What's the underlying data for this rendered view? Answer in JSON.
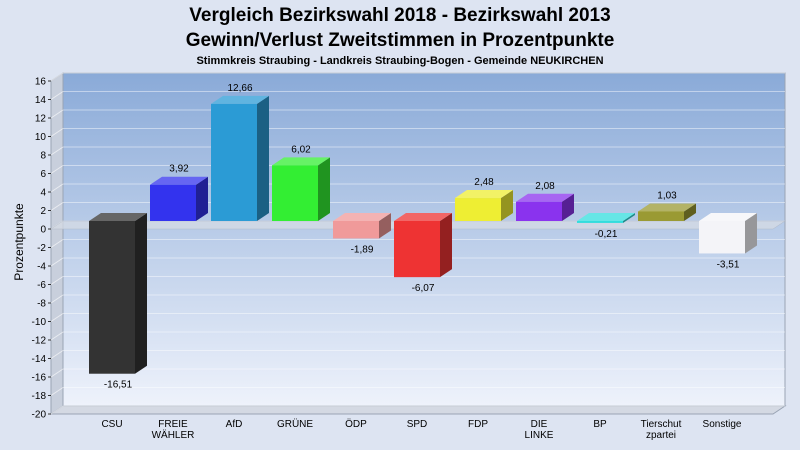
{
  "chart_data": {
    "type": "bar",
    "title": "Vergleich Bezirkswahl 2018 - Bezirkswahl 2013",
    "subtitle": "Gewinn/Verlust Zweitstimmen in Prozentpunkte",
    "subsubtitle": "Stimmkreis Straubing - Landkreis Straubing-Bogen - Gemeinde NEUKIRCHEN",
    "ylabel": "Prozentpunkte",
    "ylim": [
      -20,
      16
    ],
    "yticks": [
      "16",
      "14",
      "12",
      "10",
      "8",
      "6",
      "4",
      "2",
      "0",
      "-2",
      "-4",
      "-6",
      "-8",
      "-10",
      "-12",
      "-14",
      "-16",
      "-18",
      "-20"
    ],
    "grid": true,
    "categories": [
      [
        "CSU"
      ],
      [
        "FREIE",
        "WÄHLER"
      ],
      [
        "AfD"
      ],
      [
        "GRÜNE"
      ],
      [
        "ÖDP"
      ],
      [
        "SPD"
      ],
      [
        "FDP"
      ],
      [
        "DIE",
        "LINKE"
      ],
      [
        "BP"
      ],
      [
        "Tierschut",
        "zpartei"
      ],
      [
        "Sonstige"
      ]
    ],
    "values": [
      -16.51,
      3.92,
      12.66,
      6.02,
      -1.89,
      -6.07,
      2.48,
      2.08,
      -0.21,
      1.03,
      -3.51
    ],
    "value_labels": [
      "-16,51",
      "3,92",
      "12,66",
      "6,02",
      "-1,89",
      "-6,07",
      "2,48",
      "2,08",
      "-0,21",
      "1,03",
      "-3,51"
    ],
    "colors": [
      "#333333",
      "#3333ee",
      "#2b9bd5",
      "#33ee33",
      "#f09a9a",
      "#ee3333",
      "#eeee33",
      "#8a33ee",
      "#33dddd",
      "#9a9a33",
      "#f4f4f8"
    ]
  }
}
